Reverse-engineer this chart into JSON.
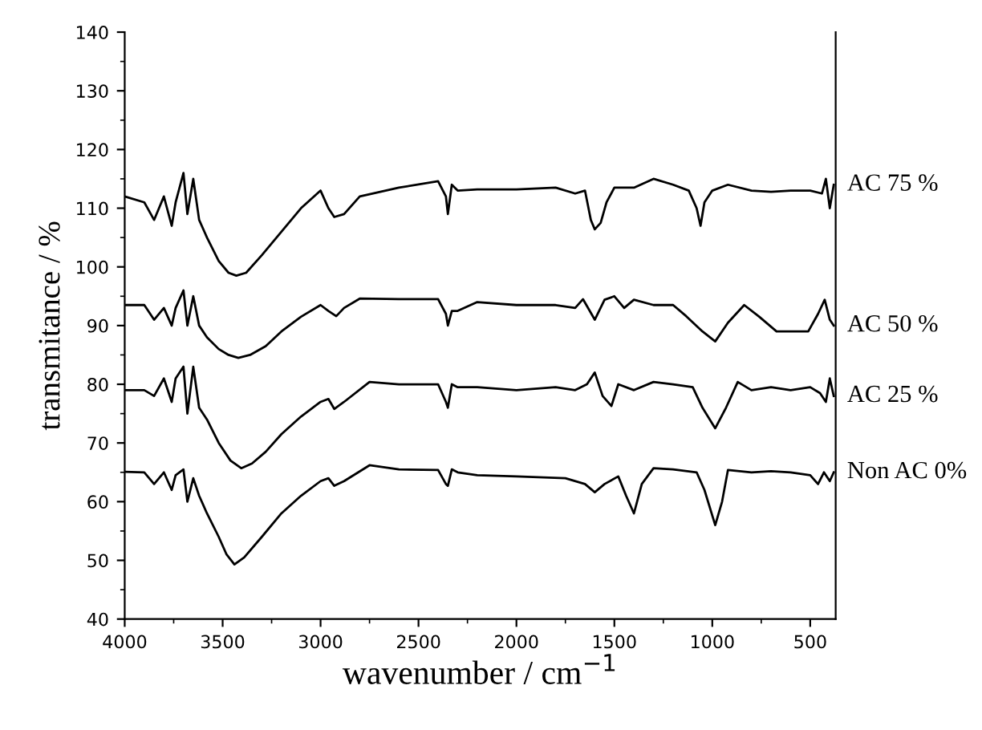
{
  "chart_data": {
    "type": "line",
    "xlabel": "wavenumber / cm$^{−1}$",
    "ylabel": "transmitance / %",
    "xlim": [
      4000,
      370
    ],
    "xticks": [
      4000,
      3500,
      3000,
      2500,
      2000,
      1500,
      1000,
      500
    ],
    "ylim": [
      40,
      140
    ],
    "yticks": [
      40,
      50,
      60,
      70,
      80,
      90,
      100,
      110,
      120,
      130,
      140
    ],
    "grid": false,
    "legend": false,
    "marker": "none",
    "line_style": "solid",
    "series": [
      {
        "name": "AC 75 %",
        "color": "#000000",
        "x": [
          4000,
          3900,
          3850,
          3800,
          3760,
          3740,
          3700,
          3680,
          3650,
          3620,
          3580,
          3520,
          3470,
          3430,
          3380,
          3300,
          3200,
          3100,
          3000,
          2960,
          2930,
          2880,
          2800,
          2600,
          2400,
          2360,
          2350,
          2330,
          2300,
          2200,
          2000,
          1800,
          1700,
          1650,
          1620,
          1600,
          1570,
          1540,
          1500,
          1400,
          1300,
          1200,
          1120,
          1080,
          1060,
          1040,
          1000,
          920,
          800,
          700,
          600,
          500,
          440,
          420,
          400,
          380
        ],
        "values": [
          112,
          111,
          108,
          112,
          107,
          111,
          116,
          109,
          115,
          108,
          105,
          101,
          99,
          98.5,
          99,
          102,
          106,
          110,
          113,
          110,
          108.5,
          109,
          112,
          113.5,
          114.6,
          112,
          109,
          114,
          113,
          113.2,
          113.2,
          113.5,
          112.5,
          113,
          108,
          106.4,
          107.5,
          111,
          113.5,
          113.5,
          115,
          114,
          113,
          110,
          107,
          111,
          113,
          114,
          113,
          112.8,
          113,
          113,
          112.5,
          115,
          110,
          114
        ]
      },
      {
        "name": "AC 50 %",
        "color": "#000000",
        "x": [
          4000,
          3900,
          3850,
          3800,
          3760,
          3740,
          3700,
          3680,
          3650,
          3620,
          3580,
          3520,
          3470,
          3420,
          3360,
          3280,
          3200,
          3100,
          3000,
          2960,
          2920,
          2880,
          2800,
          2600,
          2400,
          2360,
          2350,
          2330,
          2300,
          2200,
          2000,
          1800,
          1700,
          1660,
          1600,
          1550,
          1500,
          1450,
          1400,
          1300,
          1200,
          1133,
          1050,
          985,
          920,
          837,
          760,
          672,
          600,
          510,
          460,
          426,
          400,
          380
        ],
        "values": [
          93.5,
          93.5,
          91,
          93,
          90,
          93,
          96,
          90,
          95,
          90,
          88,
          86,
          85,
          84.5,
          85,
          86.5,
          89,
          91.5,
          93.5,
          92.5,
          91.6,
          93,
          94.6,
          94.5,
          94.5,
          92,
          90,
          92.5,
          92.5,
          94,
          93.5,
          93.5,
          93,
          94.5,
          91,
          94.4,
          95,
          93,
          94.4,
          93.5,
          93.5,
          91.6,
          89,
          87.3,
          90.5,
          93.5,
          91.5,
          89,
          89,
          89,
          92,
          94.4,
          91,
          90
        ]
      },
      {
        "name": "AC 25 %",
        "color": "#000000",
        "x": [
          4000,
          3900,
          3850,
          3800,
          3760,
          3740,
          3700,
          3680,
          3650,
          3620,
          3580,
          3520,
          3460,
          3405,
          3350,
          3280,
          3200,
          3100,
          3000,
          2960,
          2930,
          2880,
          2750,
          2600,
          2400,
          2360,
          2350,
          2330,
          2300,
          2200,
          2000,
          1800,
          1700,
          1640,
          1600,
          1560,
          1515,
          1480,
          1400,
          1300,
          1200,
          1100,
          1050,
          985,
          930,
          870,
          800,
          700,
          600,
          500,
          450,
          420,
          400,
          380
        ],
        "values": [
          79,
          79,
          78,
          81,
          77,
          81,
          83,
          75,
          83,
          76,
          74,
          70,
          67,
          65.7,
          66.5,
          68.5,
          71.5,
          74.5,
          77,
          77.5,
          75.8,
          77,
          80.4,
          80,
          80,
          77,
          76,
          80,
          79.5,
          79.5,
          79,
          79.5,
          79,
          80,
          82,
          78,
          76.3,
          80,
          79,
          80.4,
          80,
          79.5,
          76,
          72.5,
          76,
          80.4,
          79,
          79.5,
          79,
          79.5,
          78.5,
          77,
          81,
          78
        ]
      },
      {
        "name": "Non AC 0%",
        "color": "#000000",
        "x": [
          4000,
          3900,
          3850,
          3800,
          3760,
          3740,
          3700,
          3680,
          3650,
          3620,
          3580,
          3520,
          3480,
          3440,
          3390,
          3300,
          3200,
          3100,
          3000,
          2960,
          2930,
          2880,
          2750,
          2600,
          2400,
          2360,
          2350,
          2330,
          2300,
          2200,
          2000,
          1750,
          1650,
          1600,
          1550,
          1480,
          1440,
          1400,
          1360,
          1300,
          1200,
          1080,
          1040,
          985,
          950,
          920,
          800,
          700,
          600,
          500,
          460,
          430,
          400,
          380
        ],
        "values": [
          65.1,
          65,
          63,
          65,
          62,
          64.5,
          65.5,
          60,
          64,
          61,
          58,
          54,
          51,
          49.3,
          50.5,
          54,
          58,
          61,
          63.5,
          64,
          62.7,
          63.5,
          66.2,
          65.5,
          65.4,
          63,
          62.7,
          65.5,
          65,
          64.5,
          64.3,
          64,
          63,
          61.6,
          63,
          64.3,
          61,
          58,
          63,
          65.7,
          65.5,
          65,
          62,
          56,
          60,
          65.4,
          65,
          65.2,
          65,
          64.5,
          63,
          65,
          63.5,
          65
        ]
      }
    ]
  }
}
